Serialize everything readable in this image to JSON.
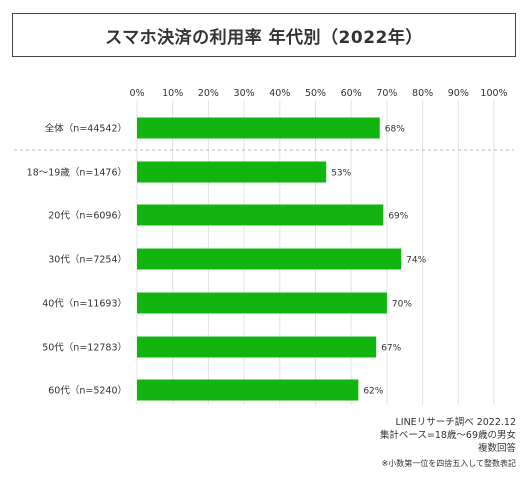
{
  "chart_data": {
    "type": "bar",
    "orientation": "horizontal",
    "title": "スマホ決済の利用率 年代別（2022年）",
    "categories": [
      "全体（n=44542）",
      "18～19歳（n=1476）",
      "20代（n=6096）",
      "30代（n=7254）",
      "40代（n=11693）",
      "50代（n=12783）",
      "60代（n=5240）"
    ],
    "values": [
      68,
      53,
      69,
      74,
      70,
      67,
      62
    ],
    "value_labels": [
      "68%",
      "53%",
      "69%",
      "74%",
      "70%",
      "67%",
      "62%"
    ],
    "xticks": [
      "0%",
      "10%",
      "20%",
      "30%",
      "40%",
      "50%",
      "60%",
      "70%",
      "80%",
      "90%",
      "100%"
    ],
    "xlim": [
      0,
      100
    ],
    "grid": true,
    "bar_color": "#12b40f",
    "legend": "none"
  },
  "notes": {
    "source": "LINEリサーチ調べ 2022.12",
    "base": "集計ベース=18歳～69歳の男女",
    "method": "複数回答",
    "footnote": "※小数第一位を四捨五入して整数表記"
  }
}
